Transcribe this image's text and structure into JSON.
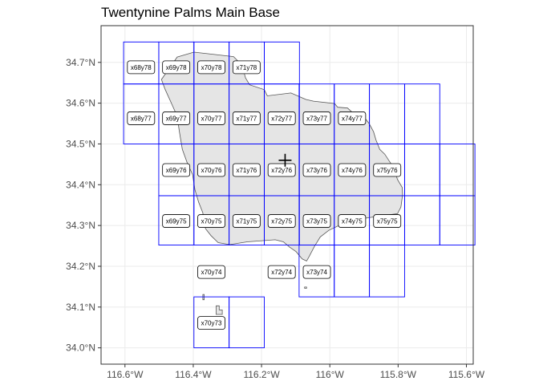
{
  "title": "Twentynine Palms Main Base",
  "colors": {
    "panel_border": "#333333",
    "grid": "#ebebeb",
    "tile_outline": "#0000ff",
    "base_fill": "#e5e5e5",
    "base_outline": "#555555",
    "label_box": "#000000"
  },
  "marker_icon": "plus-icon",
  "axes": {
    "x_ticks": [
      {
        "value": -116.6,
        "label": "116.6°W"
      },
      {
        "value": -116.4,
        "label": "116.4°W"
      },
      {
        "value": -116.2,
        "label": "116.2°W"
      },
      {
        "value": -116.0,
        "label": "116°W"
      },
      {
        "value": -115.8,
        "label": "115.8°W"
      },
      {
        "value": -115.6,
        "label": "115.6°W"
      }
    ],
    "y_ticks": [
      {
        "value": 34.0,
        "label": "34.0°N"
      },
      {
        "value": 34.1,
        "label": "34.1°N"
      },
      {
        "value": 34.2,
        "label": "34.2°N"
      },
      {
        "value": 34.3,
        "label": "34.3°N"
      },
      {
        "value": 34.4,
        "label": "34.4°N"
      },
      {
        "value": 34.5,
        "label": "34.5°N"
      },
      {
        "value": 34.6,
        "label": "34.6°N"
      },
      {
        "value": 34.7,
        "label": "34.7°N"
      }
    ],
    "xlim": [
      -116.67,
      -115.58
    ],
    "ylim": [
      33.96,
      34.79
    ]
  },
  "tile_rows": [
    {
      "y0": 34.647,
      "y1": 34.75,
      "x": [
        -116.604,
        -116.501,
        -116.398,
        -116.295,
        -116.192
      ]
    },
    {
      "y0": 34.5,
      "y1": 34.647,
      "x": [
        -116.604,
        -116.501,
        -116.398,
        -116.295,
        -116.192,
        -116.09,
        -115.987,
        -115.884,
        -115.781
      ]
    },
    {
      "y0": 34.373,
      "y1": 34.5,
      "x": [
        -116.501,
        -116.398,
        -116.295,
        -116.192,
        -116.09,
        -115.987,
        -115.884,
        -115.781,
        -115.678
      ]
    },
    {
      "y0": 34.252,
      "y1": 34.373,
      "x": [
        -116.501,
        -116.398,
        -116.295,
        -116.192,
        -116.09,
        -115.987,
        -115.884,
        -115.781,
        -115.678
      ]
    },
    {
      "y0": 34.125,
      "y1": 34.252,
      "x": [
        -116.09,
        -115.987,
        -115.884
      ]
    },
    {
      "y0": 34.0,
      "y1": 34.125,
      "x": [
        -116.398,
        -116.295
      ]
    }
  ],
  "tiles": [
    {
      "label": "x68y78",
      "lon": -116.553,
      "lat": 34.688
    },
    {
      "label": "x69y78",
      "lon": -116.45,
      "lat": 34.688
    },
    {
      "label": "x70y78",
      "lon": -116.347,
      "lat": 34.688
    },
    {
      "label": "x71y78",
      "lon": -116.244,
      "lat": 34.688
    },
    {
      "label": "x68y77",
      "lon": -116.553,
      "lat": 34.563
    },
    {
      "label": "x69y77",
      "lon": -116.45,
      "lat": 34.563
    },
    {
      "label": "x70y77",
      "lon": -116.347,
      "lat": 34.563
    },
    {
      "label": "x71y77",
      "lon": -116.244,
      "lat": 34.563
    },
    {
      "label": "x72y77",
      "lon": -116.141,
      "lat": 34.563
    },
    {
      "label": "x73y77",
      "lon": -116.038,
      "lat": 34.563
    },
    {
      "label": "x74y77",
      "lon": -115.935,
      "lat": 34.563
    },
    {
      "label": "x69y76",
      "lon": -116.45,
      "lat": 34.436
    },
    {
      "label": "x70y76",
      "lon": -116.347,
      "lat": 34.436
    },
    {
      "label": "x71y76",
      "lon": -116.244,
      "lat": 34.436
    },
    {
      "label": "x72y76",
      "lon": -116.141,
      "lat": 34.436
    },
    {
      "label": "x73y76",
      "lon": -116.038,
      "lat": 34.436
    },
    {
      "label": "x74y76",
      "lon": -115.935,
      "lat": 34.436
    },
    {
      "label": "x75y76",
      "lon": -115.832,
      "lat": 34.436
    },
    {
      "label": "x69y75",
      "lon": -116.45,
      "lat": 34.311
    },
    {
      "label": "x70y75",
      "lon": -116.347,
      "lat": 34.311
    },
    {
      "label": "x71y75",
      "lon": -116.244,
      "lat": 34.311
    },
    {
      "label": "x72y75",
      "lon": -116.141,
      "lat": 34.311
    },
    {
      "label": "x73y75",
      "lon": -116.038,
      "lat": 34.311
    },
    {
      "label": "x74y75",
      "lon": -115.935,
      "lat": 34.311
    },
    {
      "label": "x75y75",
      "lon": -115.832,
      "lat": 34.311
    },
    {
      "label": "x70y74",
      "lon": -116.347,
      "lat": 34.186
    },
    {
      "label": "x72y74",
      "lon": -116.141,
      "lat": 34.186
    },
    {
      "label": "x73y74",
      "lon": -116.038,
      "lat": 34.186
    },
    {
      "label": "x70y73",
      "lon": -116.347,
      "lat": 34.061
    }
  ],
  "marker": {
    "lon": -116.131,
    "lat": 34.46
  },
  "base_outline": [
    [
      -116.447,
      34.713
    ],
    [
      -116.398,
      34.725
    ],
    [
      -116.282,
      34.714
    ],
    [
      -116.257,
      34.693
    ],
    [
      -116.247,
      34.662
    ],
    [
      -116.235,
      34.645
    ],
    [
      -116.192,
      34.633
    ],
    [
      -116.183,
      34.618
    ],
    [
      -116.114,
      34.625
    ],
    [
      -116.07,
      34.609
    ],
    [
      -116.048,
      34.605
    ],
    [
      -115.986,
      34.599
    ],
    [
      -115.977,
      34.59
    ],
    [
      -115.948,
      34.588
    ],
    [
      -115.935,
      34.578
    ],
    [
      -115.918,
      34.578
    ],
    [
      -115.897,
      34.563
    ],
    [
      -115.885,
      34.55
    ],
    [
      -115.872,
      34.53
    ],
    [
      -115.865,
      34.51
    ],
    [
      -115.854,
      34.487
    ],
    [
      -115.839,
      34.475
    ],
    [
      -115.826,
      34.458
    ],
    [
      -115.812,
      34.441
    ],
    [
      -115.802,
      34.413
    ],
    [
      -115.788,
      34.393
    ],
    [
      -115.787,
      34.375
    ],
    [
      -115.792,
      34.345
    ],
    [
      -115.802,
      34.329
    ],
    [
      -115.862,
      34.322
    ],
    [
      -115.943,
      34.312
    ],
    [
      -116.003,
      34.288
    ],
    [
      -116.028,
      34.272
    ],
    [
      -116.045,
      34.249
    ],
    [
      -116.06,
      34.225
    ],
    [
      -116.068,
      34.213
    ],
    [
      -116.081,
      34.218
    ],
    [
      -116.099,
      34.236
    ],
    [
      -116.118,
      34.247
    ],
    [
      -116.136,
      34.26
    ],
    [
      -116.16,
      34.265
    ],
    [
      -116.242,
      34.26
    ],
    [
      -116.293,
      34.253
    ],
    [
      -116.327,
      34.258
    ],
    [
      -116.348,
      34.275
    ],
    [
      -116.364,
      34.292
    ],
    [
      -116.369,
      34.311
    ],
    [
      -116.372,
      34.331
    ],
    [
      -116.384,
      34.357
    ],
    [
      -116.395,
      34.387
    ],
    [
      -116.402,
      34.425
    ],
    [
      -116.417,
      34.452
    ],
    [
      -116.432,
      34.487
    ],
    [
      -116.441,
      34.532
    ],
    [
      -116.447,
      34.568
    ],
    [
      -116.463,
      34.598
    ],
    [
      -116.483,
      34.635
    ],
    [
      -116.493,
      34.658
    ]
  ],
  "small_parcels": [
    [
      [
        -116.372,
        34.131
      ],
      [
        -116.368,
        34.131
      ],
      [
        -116.368,
        34.118
      ],
      [
        -116.372,
        34.118
      ]
    ],
    [
      [
        -116.333,
        34.103
      ],
      [
        -116.324,
        34.103
      ],
      [
        -116.324,
        34.093
      ],
      [
        -116.315,
        34.093
      ],
      [
        -116.315,
        34.082
      ],
      [
        -116.333,
        34.082
      ]
    ],
    [
      [
        -116.074,
        34.149
      ],
      [
        -116.068,
        34.149
      ],
      [
        -116.068,
        34.146
      ],
      [
        -116.074,
        34.146
      ]
    ]
  ]
}
